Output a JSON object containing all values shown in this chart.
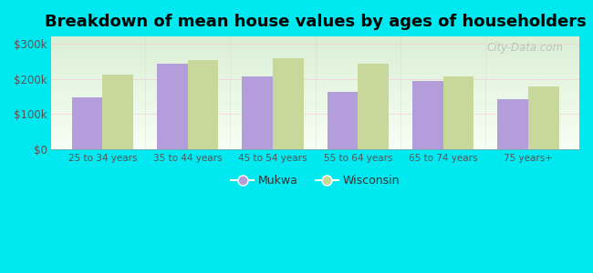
{
  "categories": [
    "25 to 34 years",
    "35 to 44 years",
    "45 to 54 years",
    "55 to 64 years",
    "65 to 74 years",
    "75 years+"
  ],
  "mukwa": [
    148000,
    243000,
    207000,
    163000,
    193000,
    143000
  ],
  "wisconsin": [
    213000,
    252000,
    258000,
    242000,
    208000,
    178000
  ],
  "mukwa_color": "#b39ddb",
  "wisconsin_color": "#c8d89a",
  "title": "Breakdown of mean house values by ages of householders",
  "title_fontsize": 13,
  "title_fontweight": "bold",
  "ylabel_ticks": [
    0,
    100000,
    200000,
    300000
  ],
  "ylabel_labels": [
    "$0",
    "$100k",
    "$200k",
    "$300k"
  ],
  "ylim": [
    0,
    320000
  ],
  "outer_background": "#00e8f0",
  "legend_mukwa": "Mukwa",
  "legend_wisconsin": "Wisconsin",
  "bar_width": 0.36,
  "watermark": "City-Data.com",
  "grid_color": "#e8f8e8",
  "tick_color": "#555555",
  "bg_top": "#f5fff5",
  "bg_bottom": "#e0f0d8"
}
